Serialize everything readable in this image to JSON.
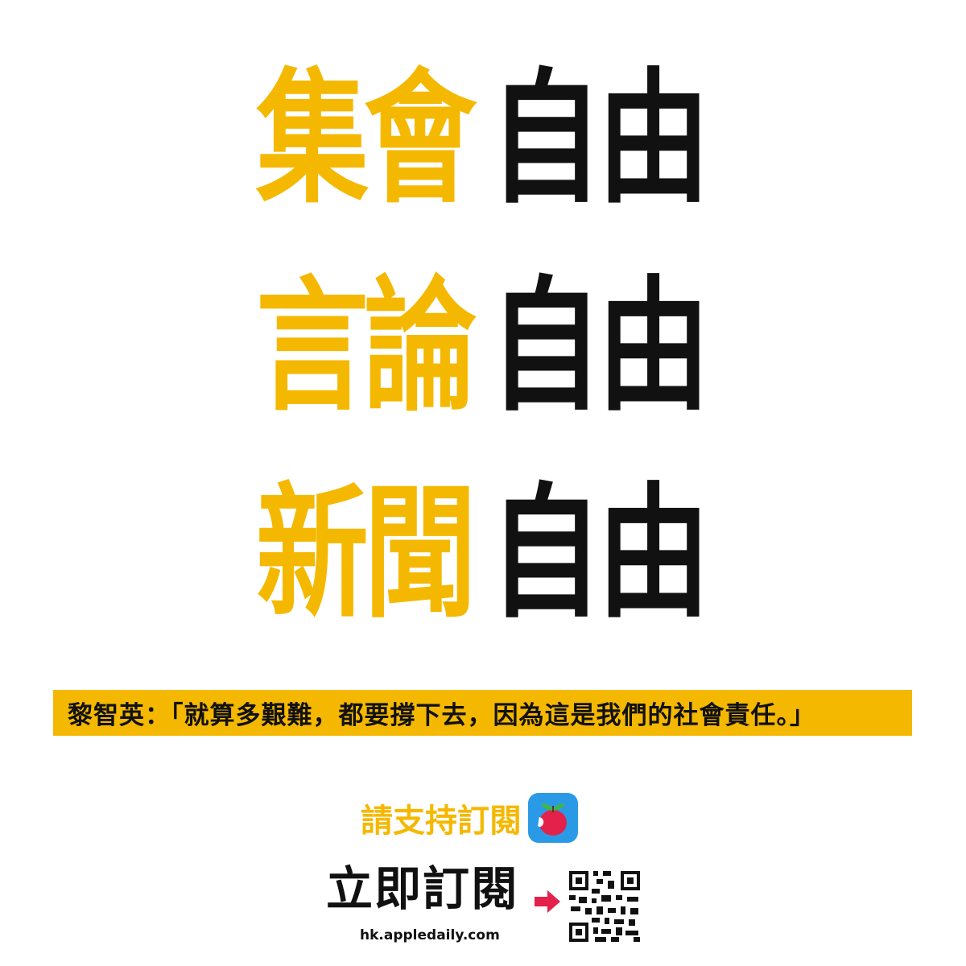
{
  "headlines": [
    {
      "topic": "集會",
      "freedom": "自由"
    },
    {
      "topic": "言論",
      "freedom": "自由"
    },
    {
      "topic": "新聞",
      "freedom": "自由"
    }
  ],
  "quote": "黎智英：「就算多艱難，都要撐下去，因為這是我們的社會責任。」",
  "support": {
    "text": "請支持訂閱",
    "icon": "apple-daily-app-icon"
  },
  "subscribe": {
    "text": "立即訂閱",
    "url": "hk.appledaily.com",
    "arrow_icon": "arrow-right-icon",
    "qr_icon": "qr-code-icon"
  },
  "colors": {
    "accent": "#f5b800",
    "text": "#111111",
    "arrow": "#e3214b",
    "app_bg": "#2b9ae6"
  }
}
